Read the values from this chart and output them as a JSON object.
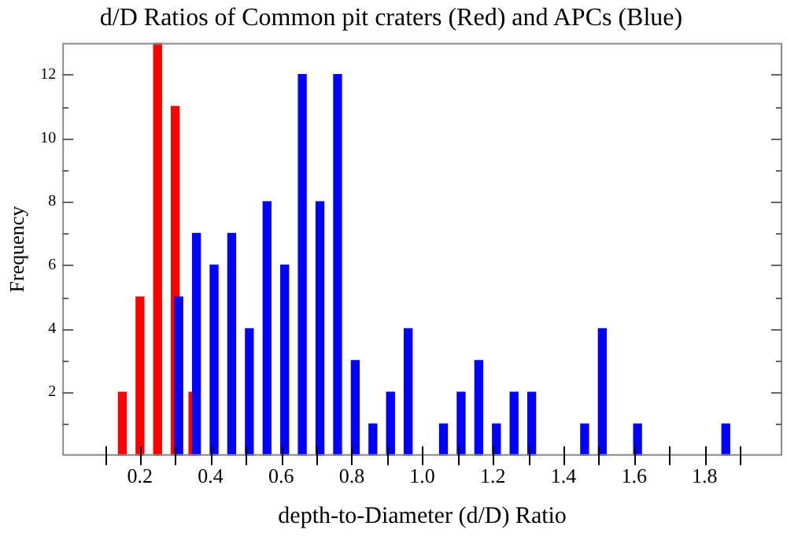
{
  "chart_data": {
    "type": "bar",
    "title": "d/D Ratios of Common pit craters (Red) and APCs (Blue)",
    "xlabel": "depth-to-Diameter (d/D) Ratio",
    "ylabel": "Frequency",
    "series": [
      {
        "color": "#ff0000",
        "x": [
          0.15,
          0.2,
          0.25,
          0.3,
          0.35
        ],
        "values": [
          2,
          5,
          13,
          11,
          2
        ]
      },
      {
        "color": "#0000ff",
        "x": [
          0.31,
          0.36,
          0.41,
          0.46,
          0.51,
          0.56,
          0.61,
          0.66,
          0.71,
          0.76,
          0.81,
          0.86,
          0.91,
          0.96,
          1.06,
          1.11,
          1.16,
          1.21,
          1.26,
          1.31,
          1.46,
          1.51,
          1.61,
          1.86
        ],
        "values": [
          5,
          7,
          6,
          7,
          4,
          8,
          6,
          12,
          8,
          12,
          3,
          1,
          2,
          4,
          1,
          2,
          3,
          1,
          2,
          2,
          1,
          4,
          1,
          1
        ]
      }
    ],
    "xlim": [
      -0.02,
      2.02
    ],
    "xticks": [
      {
        "value": 0.1,
        "label": null
      },
      0.2,
      {
        "value": 0.3,
        "label": null
      },
      0.4,
      {
        "value": 0.5,
        "label": null
      },
      0.6,
      {
        "value": 0.7,
        "label": null
      },
      0.8,
      {
        "value": 0.9,
        "label": null
      },
      {
        "value": 1,
        "label": "1.0"
      },
      {
        "value": 1.1,
        "label": null
      },
      1.2,
      {
        "value": 1.3,
        "label": null
      },
      1.4,
      {
        "value": 1.5,
        "label": null
      },
      1.6,
      {
        "value": 1.7,
        "label": null
      },
      1.8,
      {
        "value": 1.9,
        "label": null
      }
    ],
    "ylim": [
      0,
      13
    ],
    "yticks": [
      {
        "value": 1,
        "label": null
      },
      2,
      {
        "value": 3,
        "label": null
      },
      4,
      {
        "value": 5,
        "label": null
      },
      6,
      {
        "value": 7,
        "label": null
      },
      8,
      {
        "value": 9,
        "label": null
      },
      10,
      {
        "value": 11,
        "label": null
      },
      12
    ],
    "grid": false,
    "legend": false
  }
}
